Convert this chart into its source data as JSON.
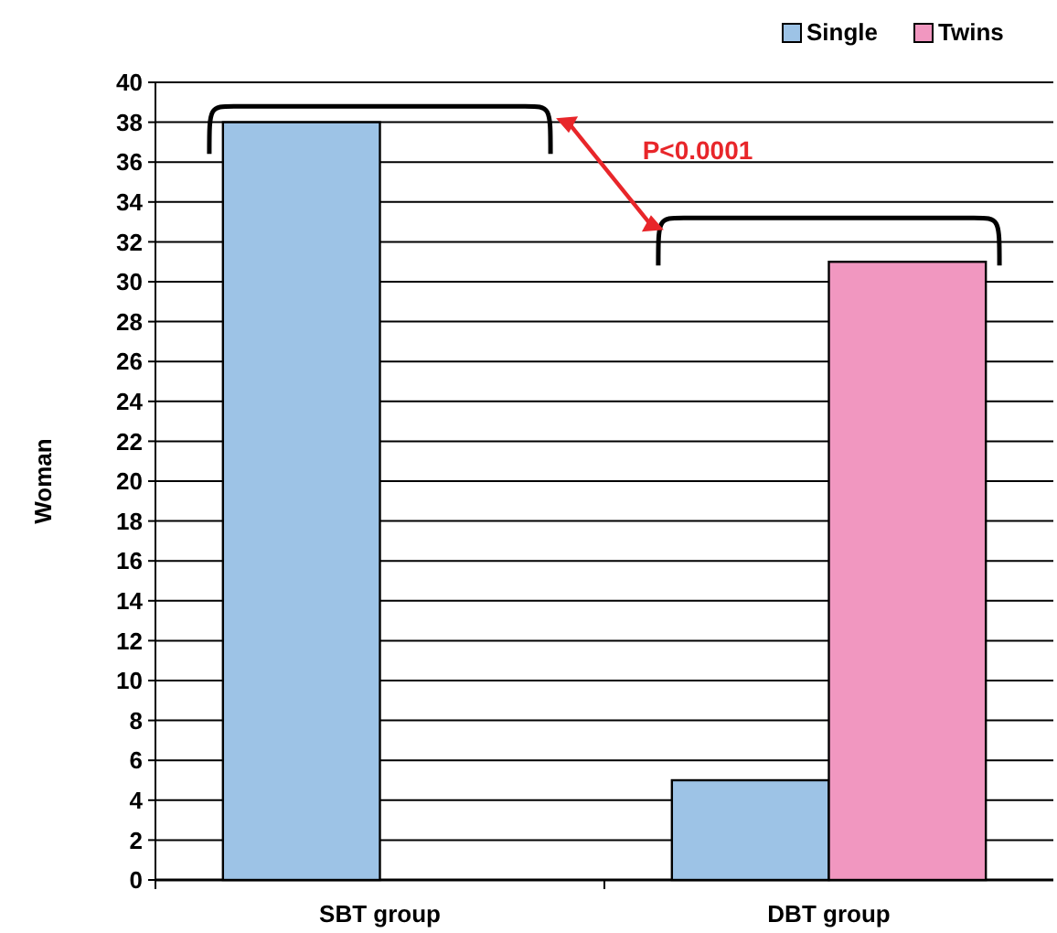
{
  "chart_data": {
    "type": "bar",
    "ylabel": "Woman",
    "categories": [
      "SBT group",
      "DBT group"
    ],
    "series": [
      {
        "name": "Single",
        "color": "#9dc3e6",
        "values": [
          38,
          5
        ]
      },
      {
        "name": "Twins",
        "color": "#f197c0",
        "values": [
          0,
          31
        ]
      }
    ],
    "ylim": [
      0,
      40
    ],
    "yticks": [
      0,
      2,
      4,
      6,
      8,
      10,
      12,
      14,
      16,
      18,
      20,
      22,
      24,
      26,
      28,
      30,
      32,
      34,
      36,
      38,
      40
    ],
    "grid": "y",
    "legend": "top right",
    "annotations": [
      "P<0.0001"
    ]
  }
}
